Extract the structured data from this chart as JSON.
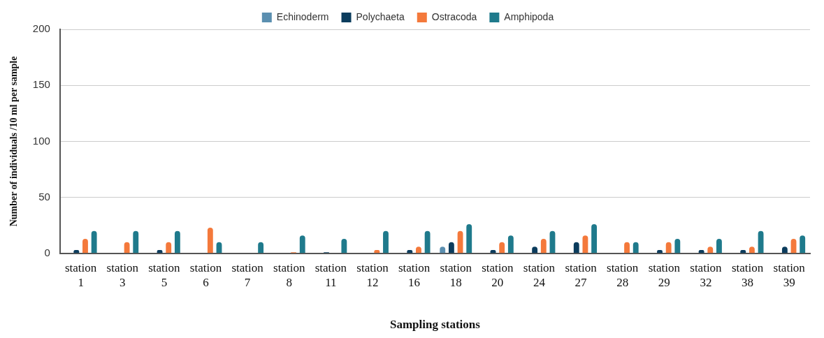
{
  "chart_data": {
    "type": "bar",
    "xlabel": "Sampling stations",
    "ylabel": "Number of individuals /10 ml per sample",
    "categories": [
      "station 1",
      "station 3",
      "station 5",
      "station 6",
      "station 7",
      "station 8",
      "station 11",
      "station 12",
      "station 16",
      "station 18",
      "station 20",
      "station 24",
      "station 27",
      "station 28",
      "station 29",
      "station 32",
      "station 38",
      "station 39"
    ],
    "series": [
      {
        "name": "Echinoderm",
        "color": "#5b8fb0",
        "values": [
          0,
          0,
          0,
          0,
          0,
          0,
          0,
          0,
          0,
          6,
          0,
          0,
          0,
          0,
          0,
          0,
          0,
          0
        ]
      },
      {
        "name": "Polychaeta",
        "color": "#0b3c5d",
        "values": [
          3,
          0,
          3,
          0,
          0,
          0,
          1,
          0,
          3,
          10,
          3,
          6,
          10,
          0,
          3,
          3,
          3,
          6
        ]
      },
      {
        "name": "Ostracoda",
        "color": "#f4793b",
        "values": [
          13,
          10,
          10,
          23,
          0,
          1,
          0,
          3,
          6,
          20,
          10,
          13,
          16,
          10,
          10,
          6,
          6,
          13
        ]
      },
      {
        "name": "Amphipoda",
        "color": "#1f7a8c",
        "values": [
          20,
          20,
          20,
          10,
          10,
          16,
          13,
          20,
          20,
          26,
          16,
          20,
          26,
          10,
          13,
          13,
          20,
          16
        ]
      }
    ],
    "ylim": [
      0,
      200
    ],
    "yticks": [
      0,
      50,
      100,
      150,
      200
    ],
    "grid": "y",
    "legend": "top"
  }
}
